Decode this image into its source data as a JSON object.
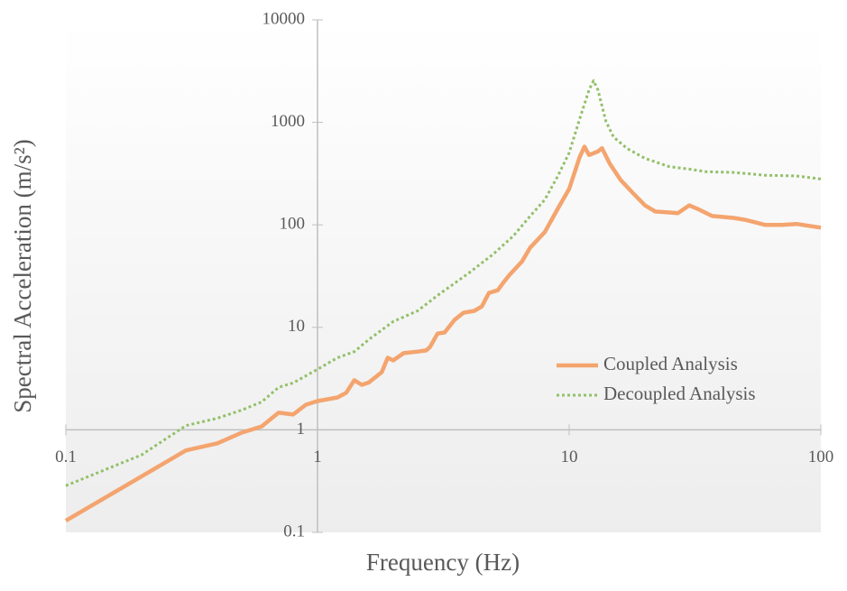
{
  "chart_data": {
    "type": "line",
    "x_label": "Frequency (Hz)",
    "y_label": "Spectral Acceleration (m/s²)",
    "xscale": "log",
    "yscale": "log",
    "xlim": [
      0.1,
      100
    ],
    "ylim": [
      0.1,
      10000
    ],
    "xticks": [
      0.1,
      1,
      10,
      100
    ],
    "yticks": [
      0.1,
      1,
      10,
      100,
      1000,
      10000
    ],
    "legend": "lower right",
    "series": [
      {
        "name": "Coupled Analysis",
        "color": "#f4a46e",
        "style": "solid",
        "x": [
          0.1,
          0.3,
          0.4,
          0.5,
          0.6,
          0.7,
          0.8,
          0.9,
          1.0,
          1.2,
          1.3,
          1.4,
          1.5,
          1.6,
          1.8,
          1.9,
          2.0,
          2.2,
          2.5,
          2.7,
          2.8,
          3.0,
          3.2,
          3.5,
          3.8,
          4.2,
          4.5,
          4.8,
          5.2,
          5.5,
          5.8,
          6.5,
          7,
          8,
          9,
          10,
          11,
          11.5,
          12,
          13,
          13.5,
          14.5,
          16,
          18,
          20,
          22,
          25,
          27,
          30,
          33,
          37,
          45,
          50,
          60,
          70,
          80,
          100
        ],
        "values": [
          0.13,
          0.63,
          0.74,
          0.94,
          1.08,
          1.47,
          1.41,
          1.76,
          1.91,
          2.07,
          2.3,
          3.05,
          2.75,
          2.9,
          3.65,
          5.05,
          4.76,
          5.6,
          5.8,
          5.95,
          6.45,
          8.7,
          8.9,
          11.8,
          13.9,
          14.5,
          16,
          21.7,
          23,
          27.8,
          32.6,
          44,
          60,
          85,
          143,
          224,
          455,
          580,
          480,
          520,
          560,
          395,
          275,
          202,
          155,
          135,
          132,
          130,
          155,
          140,
          122,
          117,
          112,
          100,
          100,
          102,
          94
        ]
      },
      {
        "name": "Decoupled Analysis",
        "color": "#93c06a",
        "style": "dotted",
        "x": [
          0.1,
          0.2,
          0.3,
          0.4,
          0.5,
          0.6,
          0.7,
          0.8,
          1.0,
          1.2,
          1.4,
          1.6,
          2.0,
          2.5,
          3,
          4,
          5,
          6,
          7,
          8,
          9,
          10,
          11,
          12,
          12.5,
          13,
          14,
          15,
          17,
          20,
          25,
          30,
          35,
          45,
          60,
          80,
          100
        ],
        "values": [
          0.285,
          0.57,
          1.1,
          1.3,
          1.56,
          1.87,
          2.6,
          2.87,
          3.9,
          5.05,
          5.8,
          7.6,
          11.4,
          14.5,
          20.5,
          34,
          52,
          78,
          122,
          176,
          297,
          505,
          1070,
          2080,
          2550,
          2080,
          1020,
          720,
          555,
          445,
          370,
          350,
          330,
          325,
          305,
          300,
          280
        ]
      }
    ]
  }
}
